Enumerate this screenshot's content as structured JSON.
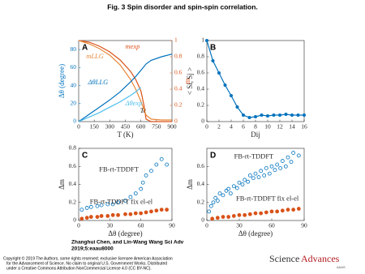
{
  "title": "Fig. 3 Spin disorder and spin-spin correlation.",
  "citation": [
    "Zhanghui Chen, and Lin-Wang Wang Sci Adv",
    "2019;5:eaau8000"
  ],
  "copyright": [
    "Copyright © 2019 The Authors, some rights reserved; exclusive licensee American Association",
    "for the Advancement of Science. No claim to original U.S. Government Works. Distributed",
    "under a Creative Commons Attribution NonCommercial License 4.0 (CC BY-NC)."
  ],
  "logo": {
    "first": "Science",
    "second": "Advances",
    "org": "AAAS"
  },
  "chart_data": [
    {
      "type": "line",
      "panel": "A",
      "xlabel": "T (K)",
      "ylabel": "Δθ (degree)",
      "y2label": "m",
      "xlim": [
        0,
        900
      ],
      "xticks": [
        0,
        150,
        300,
        450,
        600,
        750,
        900
      ],
      "ylim": [
        0,
        90
      ],
      "yticks": [
        0,
        20,
        40,
        60,
        80
      ],
      "y2lim": [
        0,
        1
      ],
      "y2ticks": [
        0,
        0.2,
        0.4,
        0.6,
        0.8,
        1
      ],
      "annotation": "Tc",
      "series": [
        {
          "name": "mexp",
          "color": "#d95319",
          "axis": "y2",
          "x": [
            0,
            100,
            200,
            300,
            400,
            500,
            550,
            600,
            630,
            650,
            700,
            800,
            900
          ],
          "values": [
            1,
            0.98,
            0.93,
            0.86,
            0.76,
            0.62,
            0.52,
            0.38,
            0.2,
            0.03,
            0,
            0,
            0
          ]
        },
        {
          "name": "mLLG",
          "color": "#e8883a",
          "axis": "y2",
          "x": [
            0,
            100,
            200,
            300,
            400,
            500,
            550,
            600,
            650,
            700,
            800,
            900
          ],
          "values": [
            1,
            0.96,
            0.9,
            0.82,
            0.7,
            0.52,
            0.4,
            0.25,
            0.08,
            0.03,
            0.02,
            0.02
          ]
        },
        {
          "name": "ΔθLLG",
          "color": "#0072bd",
          "x": [
            0,
            100,
            200,
            300,
            400,
            500,
            550,
            600,
            650,
            700,
            800,
            900
          ],
          "values": [
            0,
            8,
            16,
            24,
            33,
            44,
            50,
            57,
            64,
            68,
            72,
            75
          ]
        },
        {
          "name": "Δθexp",
          "color": "#4dbeee",
          "x": [
            0,
            100,
            200,
            300,
            400,
            500,
            550,
            600
          ],
          "values": [
            0,
            5,
            10,
            16,
            22,
            29,
            33,
            38
          ]
        }
      ]
    },
    {
      "type": "line",
      "panel": "B",
      "xlabel": "Dij",
      "ylabel": "< Si, Sj >",
      "xlim": [
        0,
        16
      ],
      "xticks": [
        0,
        2,
        4,
        6,
        8,
        10,
        12,
        14,
        16
      ],
      "ylim": [
        0,
        1
      ],
      "yticks": [
        0,
        0.2,
        0.4,
        0.6,
        0.8,
        1
      ],
      "series": [
        {
          "color": "#0072bd",
          "x": [
            0,
            1,
            2,
            3,
            4,
            5,
            6,
            7,
            8,
            9,
            10,
            11,
            12,
            13,
            14,
            15,
            16
          ],
          "values": [
            1,
            0.75,
            0.6,
            0.45,
            0.32,
            0.18,
            0.08,
            0.05,
            0.06,
            0.08,
            0.07,
            0.08,
            0.08,
            0.09,
            0.08,
            0.08,
            0.08
          ]
        }
      ]
    },
    {
      "type": "scatter",
      "panel": "C",
      "xlabel": "Δθ (degree)",
      "ylabel": "Δm",
      "xlim": [
        0,
        90
      ],
      "xticks": [
        0,
        30,
        60,
        90
      ],
      "ylim": [
        0,
        0.8
      ],
      "yticks": [
        0,
        0.2,
        0.4,
        0.6,
        0.8
      ],
      "series": [
        {
          "name": "FB-rt-TDDFT",
          "color": "#0072bd",
          "marker": "open",
          "x": [
            3,
            8,
            12,
            18,
            22,
            28,
            33,
            38,
            45,
            50,
            55,
            60,
            62,
            65,
            70,
            75,
            80,
            85
          ],
          "values": [
            0.12,
            0.14,
            0.15,
            0.16,
            0.17,
            0.18,
            0.18,
            0.2,
            0.22,
            0.26,
            0.3,
            0.35,
            0.42,
            0.5,
            0.55,
            0.62,
            0.68,
            0.62
          ]
        },
        {
          "name": "FB-rt-TDDFT fix el-el",
          "color": "#d95319",
          "marker": "filled",
          "x": [
            3,
            8,
            12,
            18,
            22,
            28,
            33,
            38,
            45,
            50,
            55,
            60,
            65,
            70,
            75,
            80,
            85
          ],
          "values": [
            0.02,
            0.03,
            0.04,
            0.04,
            0.05,
            0.05,
            0.06,
            0.06,
            0.07,
            0.07,
            0.08,
            0.08,
            0.09,
            0.1,
            0.11,
            0.12,
            0.12
          ]
        }
      ]
    },
    {
      "type": "scatter",
      "panel": "D",
      "xlabel": "Δθ (degree)",
      "ylabel": "Δm",
      "xlim": [
        0,
        90
      ],
      "xticks": [
        0,
        30,
        60,
        90
      ],
      "ylim": [
        0,
        0.8
      ],
      "yticks": [
        0,
        0.2,
        0.4,
        0.6
      ],
      "series": [
        {
          "name": "FB-rt-TDDFT",
          "color": "#0072bd",
          "marker": "open",
          "x": [
            2,
            4,
            6,
            8,
            10,
            12,
            15,
            18,
            20,
            22,
            25,
            28,
            30,
            33,
            35,
            38,
            40,
            43,
            45,
            48,
            50,
            53,
            55,
            58,
            60,
            63,
            65,
            68,
            70,
            73,
            75,
            78,
            80,
            85
          ],
          "values": [
            0.1,
            0.16,
            0.2,
            0.25,
            0.22,
            0.3,
            0.28,
            0.33,
            0.35,
            0.3,
            0.38,
            0.36,
            0.42,
            0.4,
            0.45,
            0.43,
            0.5,
            0.47,
            0.52,
            0.48,
            0.55,
            0.5,
            0.58,
            0.52,
            0.6,
            0.56,
            0.62,
            0.58,
            0.66,
            0.6,
            0.7,
            0.65,
            0.75,
            0.72
          ]
        },
        {
          "name": "FB-rt-TDDFT fix el-el",
          "color": "#d95319",
          "marker": "filled",
          "x": [
            5,
            10,
            15,
            20,
            25,
            30,
            35,
            40,
            45,
            50,
            55,
            60,
            65,
            70,
            75,
            80,
            85
          ],
          "values": [
            0.02,
            0.03,
            0.04,
            0.04,
            0.05,
            0.06,
            0.06,
            0.07,
            0.08,
            0.08,
            0.09,
            0.1,
            0.1,
            0.11,
            0.12,
            0.12,
            0.13
          ]
        }
      ]
    }
  ]
}
